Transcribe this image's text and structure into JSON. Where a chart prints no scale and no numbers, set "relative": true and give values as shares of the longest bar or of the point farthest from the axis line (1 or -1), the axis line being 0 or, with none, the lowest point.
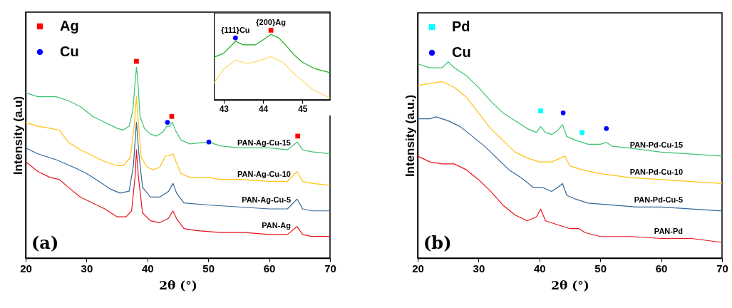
{
  "chart_data": [
    {
      "type": "line",
      "relative": true,
      "xlabel": "2θ (°)",
      "ylabel": "Intensity (a.u)",
      "xlim": [
        20,
        70
      ],
      "xticks": [
        20,
        30,
        40,
        50,
        60,
        70
      ],
      "legend": "top left",
      "annotations": [
        "(a)"
      ],
      "series": [
        {
          "name": "PAN-Ag-Cu-15",
          "color": "#3cc46e",
          "x": [
            20,
            22,
            25,
            27,
            29,
            31,
            33,
            35,
            36,
            37,
            37.6,
            38.0,
            38.2,
            38.4,
            38.8,
            39.5,
            40.5,
            41.5,
            42.5,
            43.2,
            43.6,
            44.1,
            44.6,
            45.5,
            47,
            50,
            52,
            55,
            60,
            63,
            64.6,
            65.5,
            67,
            70
          ],
          "values": [
            0.84,
            0.82,
            0.82,
            0.8,
            0.77,
            0.72,
            0.69,
            0.66,
            0.65,
            0.67,
            0.75,
            0.9,
            0.97,
            0.91,
            0.72,
            0.66,
            0.63,
            0.62,
            0.64,
            0.67,
            0.67,
            0.69,
            0.65,
            0.6,
            0.58,
            0.59,
            0.57,
            0.56,
            0.56,
            0.55,
            0.59,
            0.55,
            0.54,
            0.53
          ]
        },
        {
          "name": "PAN-Ag-Cu-10",
          "color": "#ffc20e",
          "x": [
            20,
            22,
            24,
            25.5,
            27,
            29,
            31,
            33,
            35,
            36,
            37.2,
            37.8,
            38.2,
            38.5,
            39,
            40,
            41,
            42,
            43,
            43.5,
            44.2,
            44.7,
            45.5,
            47,
            50,
            52,
            55,
            60,
            63,
            64.6,
            65.5,
            67,
            70
          ],
          "values": [
            0.69,
            0.67,
            0.66,
            0.65,
            0.59,
            0.55,
            0.52,
            0.49,
            0.47,
            0.47,
            0.51,
            0.66,
            0.82,
            0.69,
            0.51,
            0.46,
            0.45,
            0.46,
            0.52,
            0.52,
            0.53,
            0.49,
            0.43,
            0.41,
            0.41,
            0.4,
            0.4,
            0.39,
            0.39,
            0.44,
            0.39,
            0.38,
            0.37
          ]
        },
        {
          "name": "PAN-Ag-Cu-5",
          "color": "#336699",
          "x": [
            20,
            22,
            25,
            28,
            30,
            32,
            34,
            35.5,
            37,
            37.7,
            38.2,
            38.6,
            39.2,
            40.5,
            42,
            43.5,
            44.2,
            44.8,
            46,
            50,
            55,
            60,
            63,
            64.6,
            65.5,
            67,
            70
          ],
          "values": [
            0.56,
            0.53,
            0.5,
            0.46,
            0.43,
            0.39,
            0.35,
            0.33,
            0.34,
            0.47,
            0.69,
            0.53,
            0.36,
            0.31,
            0.31,
            0.34,
            0.38,
            0.33,
            0.28,
            0.27,
            0.26,
            0.25,
            0.25,
            0.3,
            0.25,
            0.24,
            0.24
          ]
        },
        {
          "name": "PAN-Ag",
          "color": "#e8141c",
          "x": [
            20,
            22,
            24,
            25.5,
            27,
            29,
            31,
            33,
            35,
            36.5,
            37.4,
            38.0,
            38.2,
            38.5,
            39.2,
            40.5,
            42,
            43.4,
            44.2,
            44.8,
            46,
            48,
            52,
            56,
            60,
            63,
            64.6,
            65.5,
            67,
            70
          ],
          "values": [
            0.49,
            0.44,
            0.41,
            0.4,
            0.36,
            0.31,
            0.28,
            0.25,
            0.21,
            0.21,
            0.24,
            0.42,
            0.55,
            0.42,
            0.23,
            0.19,
            0.18,
            0.2,
            0.24,
            0.2,
            0.15,
            0.14,
            0.13,
            0.13,
            0.12,
            0.12,
            0.16,
            0.12,
            0.11,
            0.11
          ]
        },
        {
          "name": "Ag",
          "type": "scatter",
          "marker": "square",
          "color": "#ff0000",
          "x": [
            38.2,
            44.0,
            64.7
          ],
          "values": [
            1.0,
            0.72,
            0.62
          ]
        },
        {
          "name": "Cu",
          "type": "scatter",
          "marker": "circle",
          "color": "#0000ff",
          "x": [
            43.3,
            50.1
          ],
          "values": [
            0.69,
            0.59
          ]
        }
      ]
    },
    {
      "type": "line",
      "relative": true,
      "xlim": [
        42.75,
        45.7
      ],
      "xticks": [
        43,
        44,
        45
      ],
      "tick_labels": "x",
      "annotations": [
        {
          "text": "{111}Cu",
          "x": 43.3,
          "y": 0.89
        },
        {
          "text": "{200}Ag",
          "x": 44.2,
          "y": 1.0
        }
      ],
      "series": [
        {
          "color": "#1aae1a",
          "x": [
            42.75,
            43.0,
            43.3,
            43.5,
            43.8,
            44.0,
            44.2,
            44.4,
            44.6,
            44.8,
            45.0,
            45.3,
            45.7
          ],
          "values": [
            0.61,
            0.67,
            0.84,
            0.79,
            0.79,
            0.86,
            0.94,
            0.89,
            0.77,
            0.64,
            0.54,
            0.45,
            0.39
          ]
        },
        {
          "color": "#ffd966",
          "x": [
            42.75,
            43.0,
            43.3,
            43.6,
            43.9,
            44.2,
            44.5,
            44.8,
            45.0,
            45.3,
            45.7
          ],
          "values": [
            0.24,
            0.44,
            0.57,
            0.52,
            0.56,
            0.62,
            0.54,
            0.37,
            0.27,
            0.13,
            0.03
          ]
        },
        {
          "type": "scatter",
          "marker": "circle",
          "color": "#0000ff",
          "x": [
            43.3
          ],
          "values": [
            0.89
          ]
        },
        {
          "type": "scatter",
          "marker": "square",
          "color": "#ff0000",
          "x": [
            44.2
          ],
          "values": [
            1.0
          ]
        }
      ]
    },
    {
      "type": "line",
      "relative": true,
      "xlabel": "2θ (°)",
      "ylabel": "Intensity (a.u.)",
      "xlim": [
        20,
        70
      ],
      "xticks": [
        20,
        30,
        40,
        50,
        60,
        70
      ],
      "legend": "top left",
      "annotations": [
        "(b)"
      ],
      "series": [
        {
          "name": "PAN-Pd-Cu-15",
          "color": "#3cc46e",
          "x": [
            20,
            22,
            24,
            25,
            26,
            28,
            30,
            32,
            34,
            36,
            38,
            39.5,
            40.2,
            41,
            42,
            43,
            43.8,
            44.5,
            46,
            48,
            50,
            51,
            52,
            55,
            60,
            65,
            70
          ],
          "values": [
            0.99,
            0.97,
            0.97,
            1.0,
            0.97,
            0.93,
            0.87,
            0.8,
            0.74,
            0.7,
            0.66,
            0.64,
            0.67,
            0.64,
            0.63,
            0.65,
            0.68,
            0.62,
            0.6,
            0.58,
            0.58,
            0.59,
            0.57,
            0.56,
            0.54,
            0.53,
            0.52
          ]
        },
        {
          "name": "PAN-Pd-Cu-10",
          "color": "#ffc20e",
          "x": [
            20,
            22,
            24,
            26,
            28,
            30,
            32,
            34,
            36,
            38,
            40,
            42,
            43.5,
            44.2,
            45,
            47,
            50,
            55,
            60,
            65,
            70
          ],
          "values": [
            0.88,
            0.89,
            0.9,
            0.87,
            0.82,
            0.74,
            0.66,
            0.6,
            0.54,
            0.51,
            0.49,
            0.49,
            0.51,
            0.52,
            0.47,
            0.45,
            0.43,
            0.41,
            0.4,
            0.39,
            0.38
          ]
        },
        {
          "name": "PAN-Pd-Cu-5",
          "color": "#336699",
          "x": [
            20,
            22,
            23,
            25,
            27,
            29,
            31,
            33,
            35,
            37,
            39,
            40.5,
            42,
            43,
            43.8,
            44.5,
            46,
            48,
            52,
            56,
            60,
            65,
            70
          ],
          "values": [
            0.71,
            0.71,
            0.72,
            0.7,
            0.67,
            0.62,
            0.57,
            0.51,
            0.45,
            0.41,
            0.36,
            0.36,
            0.34,
            0.36,
            0.38,
            0.32,
            0.3,
            0.28,
            0.27,
            0.26,
            0.26,
            0.25,
            0.24
          ]
        },
        {
          "name": "PAN-Pd",
          "color": "#e8141c",
          "x": [
            20,
            22,
            24,
            26,
            28,
            30,
            32,
            34,
            36,
            38,
            39.5,
            40.2,
            41,
            43,
            45,
            46.5,
            47.5,
            50,
            55,
            60,
            65,
            70
          ],
          "values": [
            0.52,
            0.49,
            0.48,
            0.48,
            0.45,
            0.4,
            0.34,
            0.27,
            0.22,
            0.19,
            0.21,
            0.25,
            0.19,
            0.17,
            0.15,
            0.15,
            0.13,
            0.11,
            0.11,
            0.1,
            0.1,
            0.08
          ]
        },
        {
          "name": "Pd",
          "type": "scatter",
          "marker": "square",
          "color": "#00ffff",
          "x": [
            40.2,
            47.0
          ],
          "values": [
            0.75,
            0.64
          ]
        },
        {
          "name": "Cu",
          "type": "scatter",
          "marker": "circle",
          "color": "#0000ff",
          "x": [
            43.9,
            51.0
          ],
          "values": [
            0.74,
            0.66
          ]
        }
      ]
    }
  ]
}
